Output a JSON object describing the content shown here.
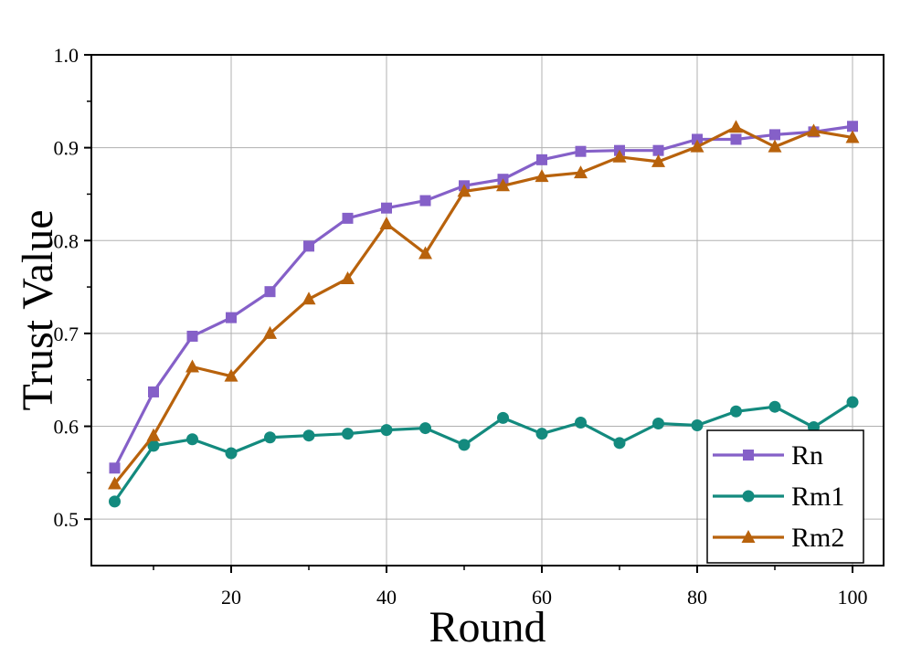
{
  "chart_data": {
    "type": "line",
    "title": "",
    "xlabel": "Round",
    "ylabel": "Trust Value",
    "xlim": [
      2,
      104
    ],
    "ylim": [
      0.45,
      1.0
    ],
    "x_ticks": [
      20,
      40,
      60,
      80,
      100
    ],
    "y_ticks": [
      0.5,
      0.6,
      0.7,
      0.8,
      0.9,
      1.0
    ],
    "x_tick_labels": [
      "20",
      "40",
      "60",
      "80",
      "100"
    ],
    "y_tick_labels": [
      "0.5",
      "0.6",
      "0.7",
      "0.8",
      "0.9",
      "1.0"
    ],
    "grid": true,
    "legend_position": "bottom-right",
    "x": [
      5,
      10,
      15,
      20,
      25,
      30,
      35,
      40,
      45,
      50,
      55,
      60,
      65,
      70,
      75,
      80,
      85,
      90,
      95,
      100
    ],
    "series": [
      {
        "name": "Rn",
        "color": "#8560c8",
        "marker": "square",
        "values": [
          0.555,
          0.637,
          0.697,
          0.717,
          0.745,
          0.794,
          0.824,
          0.835,
          0.843,
          0.859,
          0.866,
          0.887,
          0.896,
          0.897,
          0.897,
          0.909,
          0.909,
          0.914,
          0.917,
          0.923
        ]
      },
      {
        "name": "Rm1",
        "color": "#138a7e",
        "marker": "circle",
        "values": [
          0.519,
          0.579,
          0.586,
          0.571,
          0.588,
          0.59,
          0.592,
          0.596,
          0.598,
          0.58,
          0.609,
          0.592,
          0.604,
          0.582,
          0.603,
          0.601,
          0.616,
          0.621,
          0.599,
          0.626
        ]
      },
      {
        "name": "Rm2",
        "color": "#b8620c",
        "marker": "triangle",
        "values": [
          0.538,
          0.59,
          0.664,
          0.654,
          0.7,
          0.737,
          0.759,
          0.818,
          0.786,
          0.853,
          0.859,
          0.869,
          0.873,
          0.89,
          0.885,
          0.901,
          0.922,
          0.901,
          0.918,
          0.911
        ]
      }
    ]
  }
}
